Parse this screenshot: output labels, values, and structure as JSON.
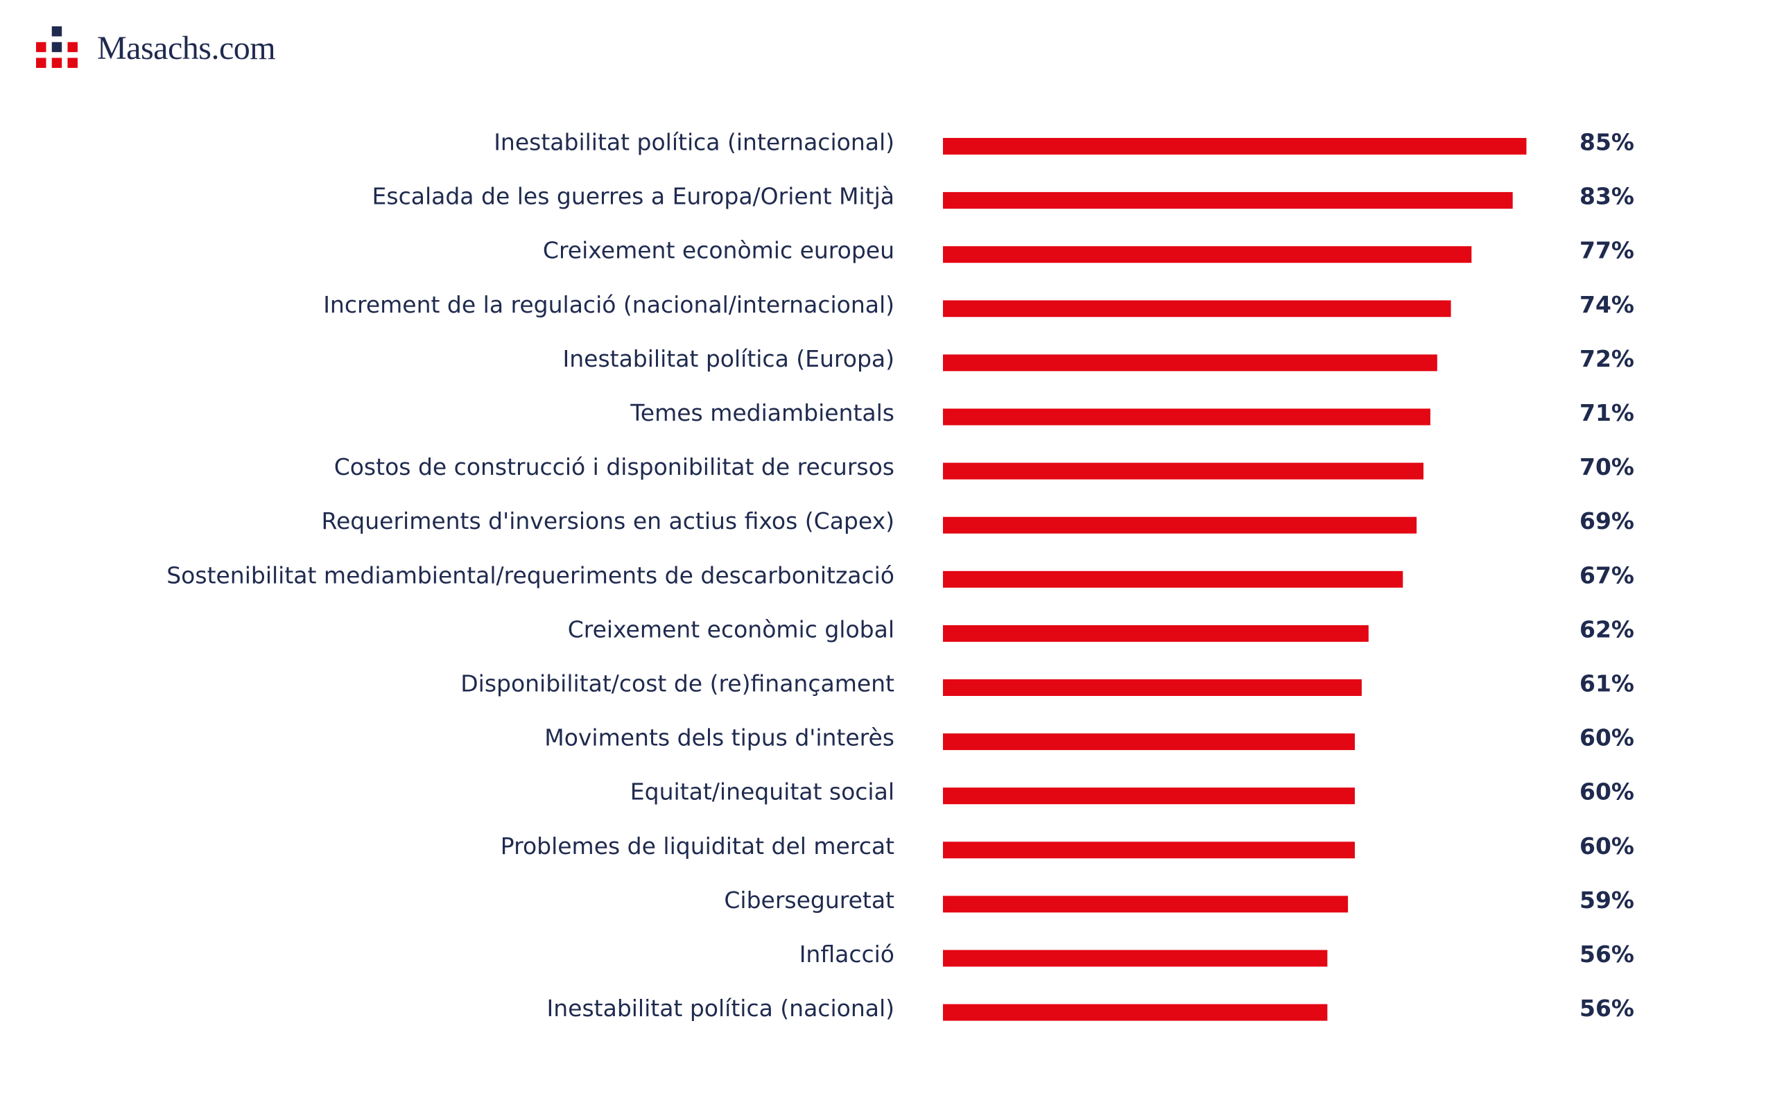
{
  "brand": {
    "name": "Masachs.com",
    "logo_colors": [
      "#1f2a4e",
      "#e30613"
    ]
  },
  "chart_data": {
    "type": "bar",
    "orientation": "horizontal",
    "categories": [
      "Inestabilitat política (internacional)",
      "Escalada de les guerres a Europa/Orient Mitjà",
      "Creixement econòmic europeu",
      "Increment de la regulació (nacional/internacional)",
      "Inestabilitat política (Europa)",
      "Temes mediambientals",
      "Costos de construcció i disponibilitat de recursos",
      "Requeriments d'inversions en actius fixos (Capex)",
      "Sostenibilitat mediambiental/requeriments de descarbonització",
      "Creixement econòmic global",
      "Disponibilitat/cost de (re)finançament",
      "Moviments dels tipus d'interès",
      "Equitat/inequitat social",
      "Problemes de liquiditat del mercat",
      "Ciberseguretat",
      "Inflacció",
      "Inestabilitat política (nacional)"
    ],
    "values": [
      85,
      83,
      77,
      74,
      72,
      71,
      70,
      69,
      67,
      62,
      61,
      60,
      60,
      60,
      59,
      56,
      56
    ],
    "value_labels": [
      "85%",
      "83%",
      "77%",
      "74%",
      "72%",
      "71%",
      "70%",
      "69%",
      "67%",
      "62%",
      "61%",
      "60%",
      "60%",
      "60%",
      "59%",
      "56%",
      "56%"
    ],
    "unit": "%",
    "xlim": [
      0,
      100
    ],
    "bar_color": "#e30613",
    "text_color": "#1f2a4e",
    "grid": false,
    "legend": "none"
  }
}
